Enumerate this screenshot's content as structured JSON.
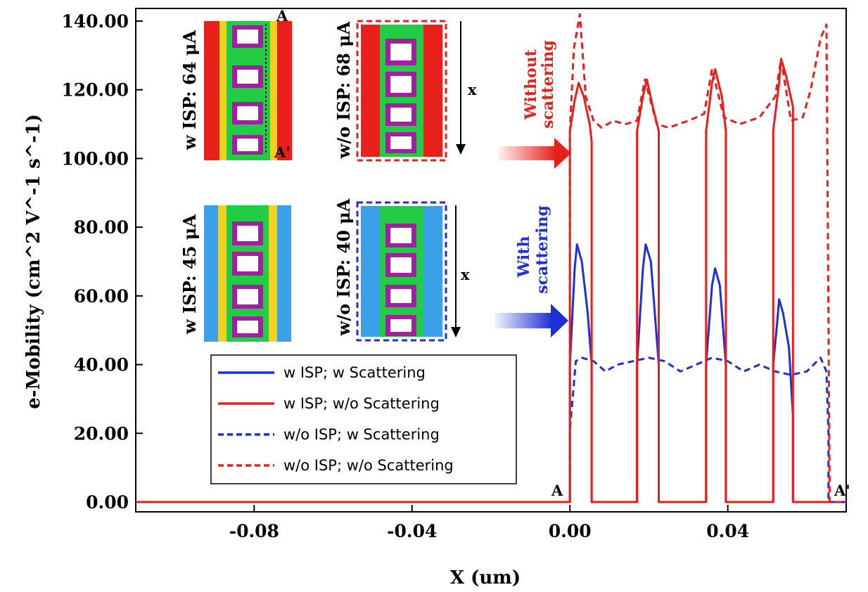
{
  "chart_data": {
    "type": "line",
    "title": "",
    "xlabel": "X (um)",
    "ylabel": "e-Mobility (cm^2 V^-1 s^-1)",
    "xlim": [
      -0.11,
      0.07
    ],
    "ylim": [
      0,
      142
    ],
    "xticks": [
      -0.08,
      -0.04,
      0.0,
      0.04
    ],
    "xtick_labels": [
      "-0.08",
      "-0.04",
      "0.00",
      "0.04"
    ],
    "yticks": [
      0,
      20,
      40,
      60,
      80,
      100,
      120,
      140
    ],
    "ytick_labels": [
      "0.00",
      "20.00",
      "40.00",
      "60.00",
      "80.00",
      "100.00",
      "120.00",
      "140.00"
    ],
    "grid": false,
    "legend_position": "bottom-center",
    "series": [
      {
        "name": "w ISP; w Scattering",
        "color": "#1f2fd6",
        "style": "solid",
        "x": [
          -0.11,
          0.0,
          0.0,
          0.0012,
          0.0018,
          0.003,
          0.0045,
          0.0055,
          0.0055,
          0.017,
          0.017,
          0.0185,
          0.0192,
          0.0205,
          0.0225,
          0.0225,
          0.0345,
          0.0345,
          0.036,
          0.0368,
          0.038,
          0.0395,
          0.0395,
          0.0515,
          0.0515,
          0.0525,
          0.053,
          0.054,
          0.0555,
          0.0565,
          0.0565,
          0.066
        ],
        "y": [
          0,
          0,
          40,
          68,
          75,
          70,
          55,
          40,
          0,
          0,
          40,
          68,
          75,
          70,
          40,
          0,
          0,
          40,
          63,
          68,
          63,
          40,
          0,
          0,
          40,
          52,
          59,
          55,
          45,
          25,
          0,
          0
        ]
      },
      {
        "name": "w ISP; w/o Scattering",
        "color": "#e8201c",
        "style": "solid",
        "x": [
          -0.11,
          0.0,
          0.0,
          0.0012,
          0.0022,
          0.0035,
          0.005,
          0.0055,
          0.0055,
          0.017,
          0.017,
          0.0185,
          0.0195,
          0.021,
          0.0225,
          0.0225,
          0.0345,
          0.0345,
          0.036,
          0.0368,
          0.0385,
          0.0395,
          0.0395,
          0.0515,
          0.0515,
          0.053,
          0.0535,
          0.0548,
          0.0565,
          0.0565,
          0.066
        ],
        "y": [
          0,
          0,
          108,
          117,
          122,
          118,
          110,
          105,
          0,
          0,
          108,
          118,
          123,
          115,
          108,
          0,
          0,
          108,
          122,
          126,
          118,
          108,
          0,
          0,
          108,
          122,
          129,
          124,
          115,
          0,
          0
        ]
      },
      {
        "name": "w/o ISP; w Scattering",
        "color": "#1f2fd6",
        "style": "dashed",
        "x": [
          0.0,
          0.0,
          0.0015,
          0.003,
          0.006,
          0.009,
          0.012,
          0.016,
          0.02,
          0.024,
          0.028,
          0.032,
          0.036,
          0.04,
          0.044,
          0.048,
          0.052,
          0.056,
          0.06,
          0.0635,
          0.065,
          0.0655,
          0.0655,
          0.07
        ],
        "y": [
          0,
          21,
          41,
          42,
          41,
          38,
          40,
          41,
          42,
          41,
          38,
          40,
          42,
          41,
          38,
          40,
          38,
          37,
          38,
          42,
          38,
          20,
          0,
          0
        ]
      },
      {
        "name": "w/o ISP; w/o Scattering",
        "color": "#e8201c",
        "style": "dashed",
        "x": [
          0.0,
          0.0,
          0.001,
          0.0025,
          0.004,
          0.006,
          0.008,
          0.011,
          0.014,
          0.017,
          0.019,
          0.022,
          0.025,
          0.03,
          0.034,
          0.036,
          0.039,
          0.043,
          0.048,
          0.052,
          0.0535,
          0.056,
          0.059,
          0.061,
          0.0635,
          0.065,
          0.0658,
          0.0658,
          0.07
        ],
        "y": [
          0,
          108,
          132,
          142,
          118,
          111,
          109,
          111,
          110,
          111,
          123,
          110,
          109,
          111,
          113,
          126,
          112,
          110,
          112,
          118,
          129,
          111,
          112,
          120,
          135,
          139,
          5,
          0,
          0
        ]
      }
    ],
    "annotations": {
      "point_a": "A",
      "point_a_prime": "A'",
      "without_scattering_line1": "Without",
      "without_scattering_line2": "scattering",
      "with_scattering_line1": "With",
      "with_scattering_line2": "scattering"
    }
  },
  "insets": [
    {
      "label": "w ISP: 64 μA",
      "theme": "red",
      "marker_top": "A",
      "marker_bottom": "A'"
    },
    {
      "label": "w/o ISP: 68 μA",
      "theme": "red",
      "arrow_label": "x"
    },
    {
      "label": "w ISP: 45 μA",
      "theme": "blue"
    },
    {
      "label": "w/o ISP: 40 μA",
      "theme": "blue",
      "arrow_label": "x"
    }
  ],
  "colors": {
    "red": "#e8201c",
    "blue": "#1f2fd6"
  }
}
